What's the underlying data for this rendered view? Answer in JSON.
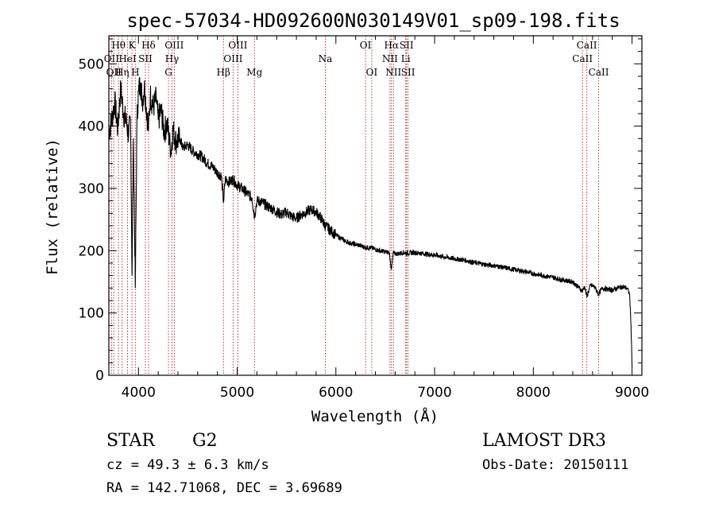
{
  "chart_data": {
    "type": "line",
    "title": "spec-57034-HD092600N030149V01_sp09-198.fits",
    "xlabel": "Wavelength (Å)",
    "ylabel": "Flux (relative)",
    "xlim": [
      3700,
      9100
    ],
    "ylim": [
      0,
      545
    ],
    "xticks": [
      4000,
      5000,
      6000,
      7000,
      8000,
      9000
    ],
    "yticks": [
      0,
      100,
      200,
      300,
      400,
      500
    ],
    "line_color": "#000000",
    "marker_color": "#b22222",
    "series": [
      {
        "name": "spectrum",
        "points": [
          [
            3700,
            390
          ],
          [
            3730,
            410
          ],
          [
            3760,
            440
          ],
          [
            3790,
            395
          ],
          [
            3820,
            460
          ],
          [
            3850,
            420
          ],
          [
            3880,
            405
          ],
          [
            3900,
            385
          ],
          [
            3920,
            410
          ],
          [
            3935,
            160
          ],
          [
            3950,
            380
          ],
          [
            3968,
            140
          ],
          [
            3985,
            410
          ],
          [
            4000,
            455
          ],
          [
            4020,
            470
          ],
          [
            4040,
            440
          ],
          [
            4060,
            465
          ],
          [
            4080,
            430
          ],
          [
            4102,
            395
          ],
          [
            4120,
            450
          ],
          [
            4150,
            430
          ],
          [
            4180,
            445
          ],
          [
            4200,
            410
          ],
          [
            4230,
            425
          ],
          [
            4260,
            390
          ],
          [
            4290,
            405
          ],
          [
            4310,
            380
          ],
          [
            4330,
            360
          ],
          [
            4350,
            395
          ],
          [
            4380,
            375
          ],
          [
            4420,
            380
          ],
          [
            4450,
            365
          ],
          [
            4500,
            370
          ],
          [
            4550,
            360
          ],
          [
            4600,
            355
          ],
          [
            4650,
            350
          ],
          [
            4700,
            340
          ],
          [
            4750,
            335
          ],
          [
            4800,
            325
          ],
          [
            4840,
            320
          ],
          [
            4861,
            278
          ],
          [
            4880,
            315
          ],
          [
            4920,
            310
          ],
          [
            4960,
            315
          ],
          [
            5000,
            305
          ],
          [
            5050,
            300
          ],
          [
            5100,
            292
          ],
          [
            5150,
            285
          ],
          [
            5175,
            255
          ],
          [
            5200,
            280
          ],
          [
            5250,
            278
          ],
          [
            5300,
            272
          ],
          [
            5350,
            268
          ],
          [
            5400,
            262
          ],
          [
            5450,
            258
          ],
          [
            5500,
            262
          ],
          [
            5550,
            255
          ],
          [
            5600,
            252
          ],
          [
            5650,
            258
          ],
          [
            5700,
            262
          ],
          [
            5750,
            266
          ],
          [
            5800,
            262
          ],
          [
            5850,
            252
          ],
          [
            5893,
            240
          ],
          [
            5950,
            232
          ],
          [
            6000,
            225
          ],
          [
            6050,
            220
          ],
          [
            6100,
            215
          ],
          [
            6150,
            212
          ],
          [
            6200,
            210
          ],
          [
            6250,
            208
          ],
          [
            6300,
            205
          ],
          [
            6350,
            205
          ],
          [
            6400,
            202
          ],
          [
            6450,
            200
          ],
          [
            6500,
            198
          ],
          [
            6540,
            197
          ],
          [
            6563,
            170
          ],
          [
            6580,
            196
          ],
          [
            6620,
            195
          ],
          [
            6680,
            197
          ],
          [
            6720,
            196
          ],
          [
            6800,
            197
          ],
          [
            6900,
            195
          ],
          [
            7000,
            193
          ],
          [
            7100,
            190
          ],
          [
            7200,
            187
          ],
          [
            7300,
            185
          ],
          [
            7400,
            181
          ],
          [
            7500,
            178
          ],
          [
            7600,
            176
          ],
          [
            7700,
            173
          ],
          [
            7800,
            170
          ],
          [
            7900,
            167
          ],
          [
            8000,
            163
          ],
          [
            8100,
            160
          ],
          [
            8200,
            157
          ],
          [
            8300,
            153
          ],
          [
            8400,
            150
          ],
          [
            8498,
            135
          ],
          [
            8520,
            143
          ],
          [
            8542,
            126
          ],
          [
            8580,
            145
          ],
          [
            8620,
            142
          ],
          [
            8662,
            130
          ],
          [
            8700,
            140
          ],
          [
            8750,
            138
          ],
          [
            8800,
            137
          ],
          [
            8850,
            140
          ],
          [
            8900,
            142
          ],
          [
            8950,
            140
          ],
          [
            8975,
            130
          ],
          [
            8990,
            80
          ],
          [
            9000,
            12
          ]
        ]
      }
    ],
    "line_markers": [
      {
        "label": "Hθ",
        "x": 3798,
        "row": 1
      },
      {
        "label": "OII",
        "x": 3727,
        "row": 2
      },
      {
        "label": "OII",
        "x": 3750,
        "row": 3
      },
      {
        "label": "HeI",
        "x": 3889,
        "row": 2
      },
      {
        "label": "Hη",
        "x": 3835,
        "row": 3
      },
      {
        "label": "K",
        "x": 3934,
        "row": 1
      },
      {
        "label": "SII",
        "x": 4070,
        "row": 2
      },
      {
        "label": "H",
        "x": 3968,
        "row": 3
      },
      {
        "label": "Hδ",
        "x": 4102,
        "row": 1
      },
      {
        "label": "OIII",
        "x": 4363,
        "row": 1
      },
      {
        "label": "Hγ",
        "x": 4340,
        "row": 2
      },
      {
        "label": "G",
        "x": 4304,
        "row": 3
      },
      {
        "label": "Hβ",
        "x": 4861,
        "row": 3
      },
      {
        "label": "OIII",
        "x": 5007,
        "row": 1
      },
      {
        "label": "OIII",
        "x": 4959,
        "row": 2
      },
      {
        "label": "Mg",
        "x": 5175,
        "row": 3
      },
      {
        "label": "Na",
        "x": 5893,
        "row": 2
      },
      {
        "label": "OI",
        "x": 6300,
        "row": 1
      },
      {
        "label": "OI",
        "x": 6363,
        "row": 3
      },
      {
        "label": "Hα",
        "x": 6563,
        "row": 1
      },
      {
        "label": "SII",
        "x": 6716,
        "row": 1
      },
      {
        "label": "NII",
        "x": 6548,
        "row": 2
      },
      {
        "label": "Li",
        "x": 6707,
        "row": 2
      },
      {
        "label": "NII",
        "x": 6583,
        "row": 3
      },
      {
        "label": "SII",
        "x": 6731,
        "row": 3
      },
      {
        "label": "CaII",
        "x": 8542,
        "row": 1
      },
      {
        "label": "CaII",
        "x": 8498,
        "row": 2
      },
      {
        "label": "CaII",
        "x": 8662,
        "row": 3
      }
    ]
  },
  "info": {
    "object_class": "STAR",
    "subclass": "G2",
    "survey": "LAMOST DR3",
    "velocity": "cz = 49.3 ± 6.3 km/s",
    "obs_date": "Obs-Date: 20150111",
    "coords": "RA = 142.71068, DEC =   3.69689"
  }
}
